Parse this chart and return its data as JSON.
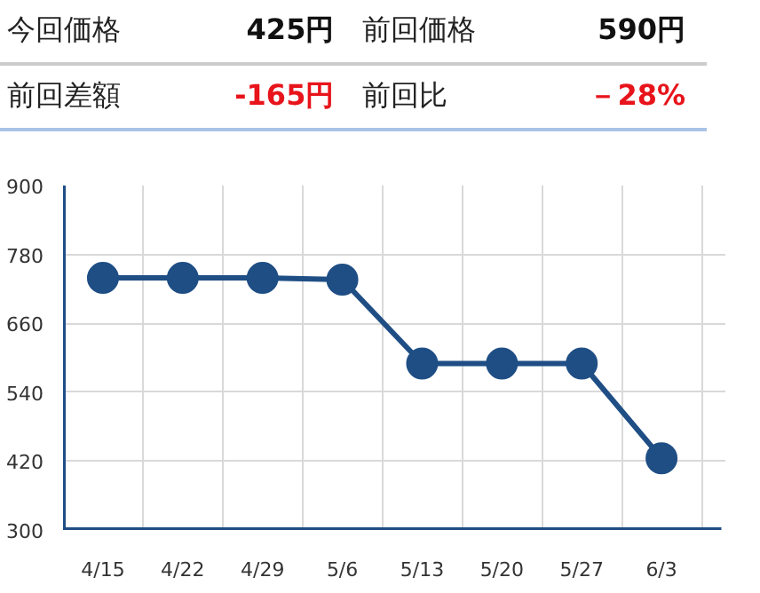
{
  "chart_data": {
    "type": "line",
    "annotations": [
      "今回価格",
      "425円",
      "前回価格",
      "590円",
      "前回差額",
      "-165円",
      "前回比",
      "－28%"
    ],
    "categories": [
      "4/15",
      "4/22",
      "4/29",
      "5/6",
      "5/13",
      "5/20",
      "5/27",
      "6/3"
    ],
    "series": [
      {
        "color": "#1f4e85",
        "values": [
          739,
          739,
          739,
          736,
          590,
          590,
          590,
          425
        ]
      }
    ],
    "ylim": [
      300,
      900
    ],
    "yticks": [
      300,
      420,
      540,
      660,
      780,
      900
    ],
    "grid": true,
    "marker": "circle",
    "line_style": "solid"
  }
}
